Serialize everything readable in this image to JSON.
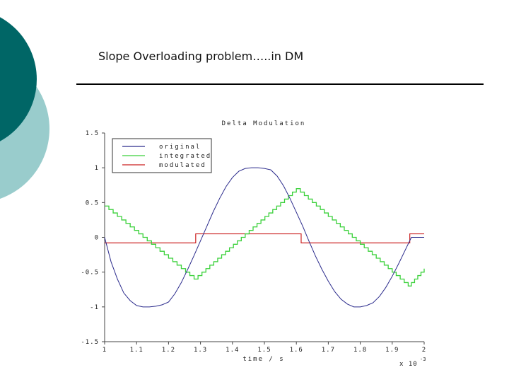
{
  "slide": {
    "title": "Slope Overloading problem…..in DM"
  },
  "colors": {
    "deco_dark": "#006666",
    "deco_light": "#99cccc",
    "original": "#2b2b8c",
    "integrated": "#3bd13b",
    "modulated": "#cc2222"
  },
  "chart_data": {
    "type": "line",
    "title": "Delta Modulation",
    "xlabel": "time / s",
    "x_scale_note": "x 10",
    "x_scale_exp": "-3",
    "xlim": [
      1,
      2
    ],
    "ylim": [
      -1.5,
      1.5
    ],
    "x_ticks": [
      1,
      1.1,
      1.2,
      1.3,
      1.4,
      1.5,
      1.6,
      1.7,
      1.8,
      1.9,
      2
    ],
    "x_tick_labels": [
      "1",
      "1.1",
      "1.2",
      "1.3",
      "1.4",
      "1.5",
      "1.6",
      "1.7",
      "1.8",
      "1.9",
      "2"
    ],
    "y_ticks": [
      -1.5,
      -1,
      -0.5,
      0,
      0.5,
      1,
      1.5
    ],
    "y_tick_labels": [
      "-1.5",
      "-1",
      "-0.5",
      "0",
      "0.5",
      "1",
      "1.5"
    ],
    "grid": false,
    "legend": "top-left",
    "series": [
      {
        "name": "original",
        "x": [
          1.0,
          1.02,
          1.04,
          1.06,
          1.08,
          1.1,
          1.12,
          1.14,
          1.16,
          1.18,
          1.2,
          1.22,
          1.24,
          1.26,
          1.28,
          1.3,
          1.32,
          1.34,
          1.36,
          1.38,
          1.4,
          1.42,
          1.44,
          1.46,
          1.48,
          1.5,
          1.52,
          1.54,
          1.56,
          1.58,
          1.6,
          1.62,
          1.64,
          1.66,
          1.68,
          1.7,
          1.72,
          1.74,
          1.76,
          1.78,
          1.8,
          1.82,
          1.84,
          1.86,
          1.88,
          1.9,
          1.92,
          1.94,
          1.96,
          1.98,
          2.0
        ],
        "y": [
          0,
          -0.35,
          -0.6,
          -0.8,
          -0.91,
          -0.98,
          -1,
          -1,
          -0.99,
          -0.97,
          -0.93,
          -0.81,
          -0.65,
          -0.46,
          -0.26,
          -0.05,
          0.16,
          0.37,
          0.56,
          0.73,
          0.86,
          0.95,
          0.99,
          1,
          1,
          0.99,
          0.97,
          0.88,
          0.74,
          0.56,
          0.36,
          0.16,
          -0.06,
          -0.27,
          -0.46,
          -0.63,
          -0.78,
          -0.89,
          -0.96,
          -1,
          -1,
          -0.98,
          -0.94,
          -0.85,
          -0.72,
          -0.56,
          -0.38,
          -0.19,
          0.0,
          0.0,
          0.0
        ]
      },
      {
        "name": "integrated",
        "step_size": 0.05,
        "start": [
          1.0,
          0.45
        ],
        "segments": [
          [
            1.28,
            -0.6
          ],
          [
            1.6,
            0.7
          ],
          [
            1.95,
            -0.7
          ],
          [
            2.0,
            -0.45
          ]
        ]
      },
      {
        "name": "modulated",
        "steps": [
          [
            1.0,
            -0.08
          ],
          [
            1.285,
            0.05
          ],
          [
            1.615,
            -0.08
          ],
          [
            1.955,
            0.05
          ],
          [
            2.0,
            0.05
          ]
        ]
      }
    ]
  }
}
